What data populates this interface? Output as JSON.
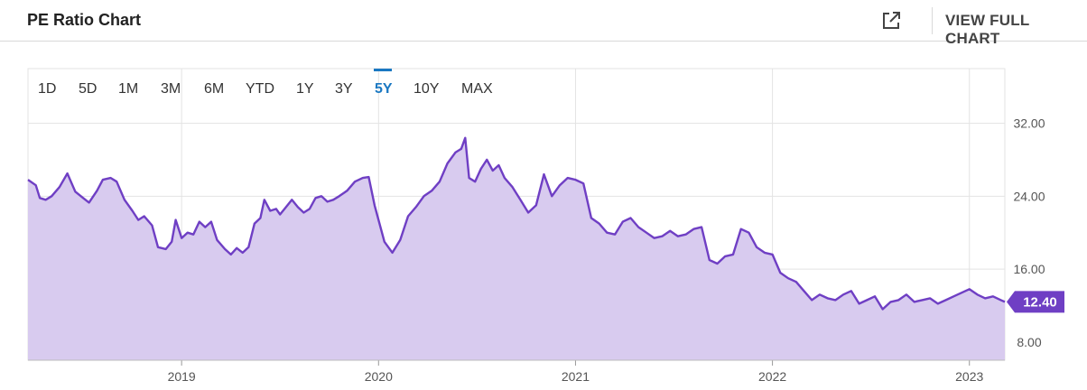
{
  "header": {
    "title": "PE Ratio Chart",
    "full_chart_label": "VIEW FULL CHART"
  },
  "ranges": {
    "items": [
      "1D",
      "5D",
      "1M",
      "3M",
      "6M",
      "YTD",
      "1Y",
      "3Y",
      "5Y",
      "10Y",
      "MAX"
    ],
    "active": "5Y"
  },
  "colors": {
    "line": "#6f3fc4",
    "fill": "#d8cbef",
    "accent": "#1a78c2",
    "badge": "#6f3fc4"
  },
  "chart_data": {
    "type": "area",
    "title": "",
    "xlabel": "",
    "ylabel": "",
    "x_ticks": [
      2019,
      2020,
      2021,
      2022,
      2023
    ],
    "y_ticks": [
      "8.00",
      "16.00",
      "24.00",
      "32.00"
    ],
    "ylim": [
      6,
      38
    ],
    "xlim": [
      2018.22,
      2023.18
    ],
    "grid": true,
    "last_value_label": "12.40",
    "series": [
      {
        "values": [
          [
            2018.22,
            25.8
          ],
          [
            2018.26,
            25.2
          ],
          [
            2018.28,
            23.8
          ],
          [
            2018.31,
            23.6
          ],
          [
            2018.34,
            24.0
          ],
          [
            2018.38,
            25.0
          ],
          [
            2018.42,
            26.5
          ],
          [
            2018.46,
            24.5
          ],
          [
            2018.5,
            23.8
          ],
          [
            2018.53,
            23.3
          ],
          [
            2018.57,
            24.6
          ],
          [
            2018.6,
            25.8
          ],
          [
            2018.64,
            26.0
          ],
          [
            2018.67,
            25.6
          ],
          [
            2018.71,
            23.6
          ],
          [
            2018.75,
            22.4
          ],
          [
            2018.78,
            21.4
          ],
          [
            2018.81,
            21.8
          ],
          [
            2018.85,
            20.8
          ],
          [
            2018.88,
            18.4
          ],
          [
            2018.92,
            18.2
          ],
          [
            2018.95,
            19.0
          ],
          [
            2018.97,
            21.4
          ],
          [
            2019.0,
            19.4
          ],
          [
            2019.03,
            20.0
          ],
          [
            2019.06,
            19.8
          ],
          [
            2019.09,
            21.2
          ],
          [
            2019.12,
            20.6
          ],
          [
            2019.15,
            21.2
          ],
          [
            2019.18,
            19.2
          ],
          [
            2019.22,
            18.2
          ],
          [
            2019.25,
            17.6
          ],
          [
            2019.28,
            18.3
          ],
          [
            2019.31,
            17.8
          ],
          [
            2019.34,
            18.4
          ],
          [
            2019.37,
            21.0
          ],
          [
            2019.4,
            21.6
          ],
          [
            2019.42,
            23.6
          ],
          [
            2019.45,
            22.4
          ],
          [
            2019.48,
            22.6
          ],
          [
            2019.5,
            22.0
          ],
          [
            2019.53,
            22.8
          ],
          [
            2019.56,
            23.6
          ],
          [
            2019.59,
            22.8
          ],
          [
            2019.62,
            22.2
          ],
          [
            2019.65,
            22.6
          ],
          [
            2019.68,
            23.8
          ],
          [
            2019.71,
            24.0
          ],
          [
            2019.74,
            23.4
          ],
          [
            2019.77,
            23.6
          ],
          [
            2019.8,
            24.0
          ],
          [
            2019.84,
            24.6
          ],
          [
            2019.88,
            25.6
          ],
          [
            2019.92,
            26.0
          ],
          [
            2019.95,
            26.1
          ],
          [
            2019.98,
            23.0
          ],
          [
            2020.03,
            19.0
          ],
          [
            2020.07,
            17.8
          ],
          [
            2020.11,
            19.2
          ],
          [
            2020.15,
            21.8
          ],
          [
            2020.19,
            22.8
          ],
          [
            2020.23,
            24.0
          ],
          [
            2020.27,
            24.6
          ],
          [
            2020.31,
            25.6
          ],
          [
            2020.35,
            27.6
          ],
          [
            2020.39,
            28.8
          ],
          [
            2020.42,
            29.2
          ],
          [
            2020.44,
            30.4
          ],
          [
            2020.46,
            26.0
          ],
          [
            2020.49,
            25.6
          ],
          [
            2020.52,
            27.0
          ],
          [
            2020.55,
            28.0
          ],
          [
            2020.58,
            26.8
          ],
          [
            2020.61,
            27.4
          ],
          [
            2020.64,
            26.0
          ],
          [
            2020.68,
            25.0
          ],
          [
            2020.72,
            23.6
          ],
          [
            2020.76,
            22.2
          ],
          [
            2020.8,
            23.0
          ],
          [
            2020.84,
            26.4
          ],
          [
            2020.88,
            24.0
          ],
          [
            2020.92,
            25.2
          ],
          [
            2020.96,
            26.0
          ],
          [
            2021.0,
            25.8
          ],
          [
            2021.04,
            25.4
          ],
          [
            2021.08,
            21.6
          ],
          [
            2021.12,
            21.0
          ],
          [
            2021.16,
            20.0
          ],
          [
            2021.2,
            19.8
          ],
          [
            2021.24,
            21.2
          ],
          [
            2021.28,
            21.6
          ],
          [
            2021.32,
            20.6
          ],
          [
            2021.36,
            20.0
          ],
          [
            2021.4,
            19.4
          ],
          [
            2021.44,
            19.6
          ],
          [
            2021.48,
            20.2
          ],
          [
            2021.52,
            19.6
          ],
          [
            2021.56,
            19.8
          ],
          [
            2021.6,
            20.4
          ],
          [
            2021.64,
            20.6
          ],
          [
            2021.68,
            17.0
          ],
          [
            2021.72,
            16.6
          ],
          [
            2021.76,
            17.4
          ],
          [
            2021.8,
            17.6
          ],
          [
            2021.84,
            20.4
          ],
          [
            2021.88,
            20.0
          ],
          [
            2021.92,
            18.4
          ],
          [
            2021.96,
            17.8
          ],
          [
            2022.0,
            17.6
          ],
          [
            2022.04,
            15.6
          ],
          [
            2022.08,
            15.0
          ],
          [
            2022.12,
            14.6
          ],
          [
            2022.16,
            13.6
          ],
          [
            2022.2,
            12.6
          ],
          [
            2022.24,
            13.2
          ],
          [
            2022.28,
            12.8
          ],
          [
            2022.32,
            12.6
          ],
          [
            2022.36,
            13.2
          ],
          [
            2022.4,
            13.6
          ],
          [
            2022.44,
            12.2
          ],
          [
            2022.48,
            12.6
          ],
          [
            2022.52,
            13.0
          ],
          [
            2022.56,
            11.6
          ],
          [
            2022.6,
            12.4
          ],
          [
            2022.64,
            12.6
          ],
          [
            2022.68,
            13.2
          ],
          [
            2022.72,
            12.4
          ],
          [
            2022.76,
            12.6
          ],
          [
            2022.8,
            12.8
          ],
          [
            2022.84,
            12.2
          ],
          [
            2022.88,
            12.6
          ],
          [
            2022.92,
            13.0
          ],
          [
            2022.96,
            13.4
          ],
          [
            2023.0,
            13.8
          ],
          [
            2023.04,
            13.2
          ],
          [
            2023.08,
            12.8
          ],
          [
            2023.12,
            13.0
          ],
          [
            2023.16,
            12.6
          ],
          [
            2023.18,
            12.4
          ]
        ]
      }
    ]
  }
}
